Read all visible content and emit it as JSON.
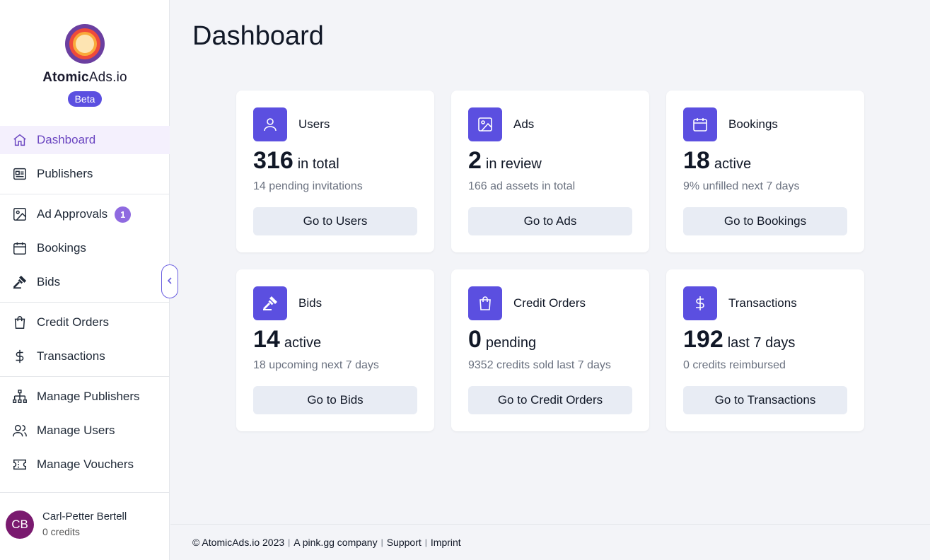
{
  "brand": {
    "name_bold": "Atomic",
    "name_rest": "Ads.io",
    "badge": "Beta"
  },
  "nav": {
    "dashboard": "Dashboard",
    "publishers": "Publishers",
    "ad_approvals": "Ad Approvals",
    "ad_approvals_count": "1",
    "bookings": "Bookings",
    "bids": "Bids",
    "credit_orders": "Credit Orders",
    "transactions": "Transactions",
    "manage_publishers": "Manage Publishers",
    "manage_users": "Manage Users",
    "manage_vouchers": "Manage Vouchers"
  },
  "user": {
    "initials": "CB",
    "name": "Carl-Petter Bertell",
    "credits": "0 credits"
  },
  "page": {
    "title": "Dashboard"
  },
  "cards": [
    {
      "title": "Users",
      "icon": "user-icon",
      "value": "316",
      "unit": "in total",
      "sub": "14 pending invitations",
      "button": "Go to Users"
    },
    {
      "title": "Ads",
      "icon": "image-icon",
      "value": "2",
      "unit": "in review",
      "sub": "166 ad assets in total",
      "button": "Go to Ads"
    },
    {
      "title": "Bookings",
      "icon": "calendar-icon",
      "value": "18",
      "unit": "active",
      "sub": "9% unfilled next 7 days",
      "button": "Go to Bookings"
    },
    {
      "title": "Bids",
      "icon": "gavel-icon",
      "value": "14",
      "unit": "active",
      "sub": "18 upcoming next 7 days",
      "button": "Go to Bids"
    },
    {
      "title": "Credit Orders",
      "icon": "shopping-bag-icon",
      "value": "0",
      "unit": "pending",
      "sub": "9352 credits sold last 7 days",
      "button": "Go to Credit Orders"
    },
    {
      "title": "Transactions",
      "icon": "dollar-icon",
      "value": "192",
      "unit": "last 7 days",
      "sub": "0 credits reimbursed",
      "button": "Go to Transactions"
    }
  ],
  "footer": {
    "copyright": "© AtomicAds.io 2023",
    "company": "A pink.gg company",
    "support": "Support",
    "imprint": "Imprint"
  },
  "colors": {
    "accent": "#5b4fe0",
    "active_nav_bg": "#f4f0fd",
    "active_nav_text": "#6b46c1",
    "badge": "#8f6ae0",
    "avatar": "#7a1a6f"
  }
}
